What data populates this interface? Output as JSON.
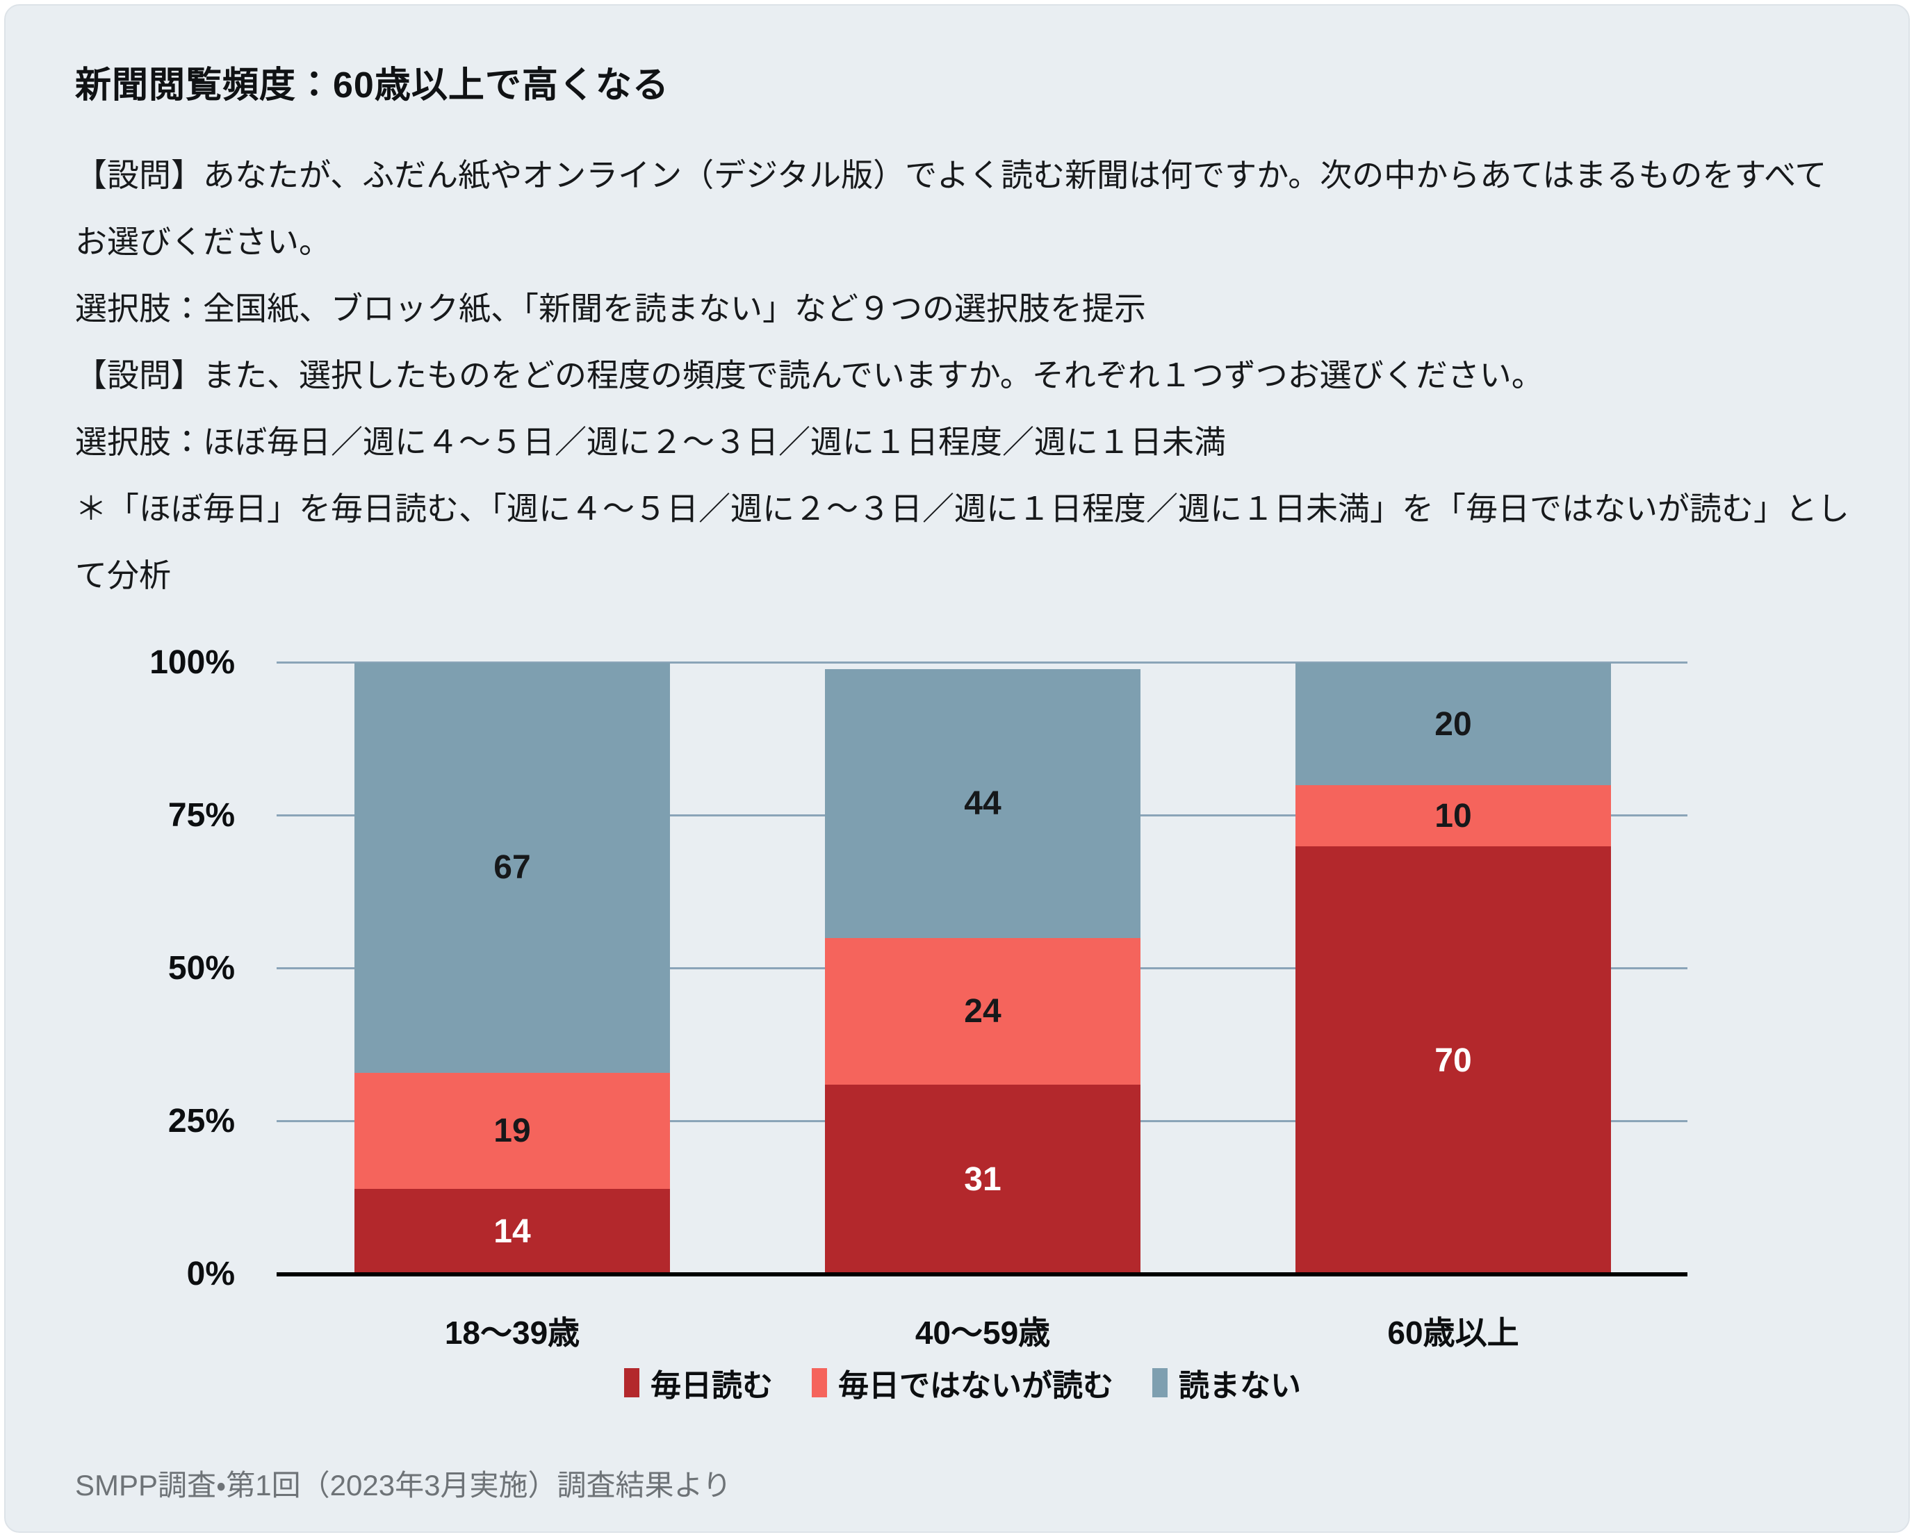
{
  "card": {
    "title": "新聞閲覧頻度：60歳以上で高くなる",
    "description": [
      "【設問】あなたが、ふだん紙やオンライン（デジタル版）でよく読む新聞は何ですか。次の中からあてはまるものをすべてお選びください。",
      "選択肢：全国紙、ブロック紙、「新聞を読まない」など９つの選択肢を提示",
      "【設問】また、選択したものをどの程度の頻度で読んでいますか。それぞれ１つずつお選びください。",
      "選択肢：ほぼ毎日／週に４〜５日／週に２〜３日／週に１日程度／週に１日未満",
      "＊「ほぼ毎日」を毎日読む、「週に４〜５日／週に２〜３日／週に１日程度／週に１日未満」を「毎日ではないが読む」として分析"
    ],
    "footer": "SMPP調査・第1回（2023年3月実施）調査結果より"
  },
  "chart_data": {
    "type": "bar",
    "stacked": true,
    "categories": [
      "18〜39歳",
      "40〜59歳",
      "60歳以上"
    ],
    "series": [
      {
        "name": "毎日読む",
        "color": "#b3282c",
        "label_color": "#ffffff",
        "values": [
          14,
          31,
          70
        ]
      },
      {
        "name": "毎日ではないが読む",
        "color": "#f5645c",
        "label_color": "#16181a",
        "values": [
          19,
          24,
          10
        ]
      },
      {
        "name": "読まない",
        "color": "#7e9fb0",
        "label_color": "#16181a",
        "values": [
          67,
          44,
          20
        ]
      }
    ],
    "yticks": [
      {
        "label": "0%",
        "value": 0
      },
      {
        "label": "25%",
        "value": 25
      },
      {
        "label": "50%",
        "value": 50
      },
      {
        "label": "75%",
        "value": 75
      },
      {
        "label": "100%",
        "value": 100
      }
    ],
    "ylim": [
      0,
      100
    ],
    "grid": true,
    "legend_position": "bottom",
    "colors": {
      "grid": "#8aa4b8",
      "axis": "#000000",
      "background": "#e9eef2"
    }
  }
}
